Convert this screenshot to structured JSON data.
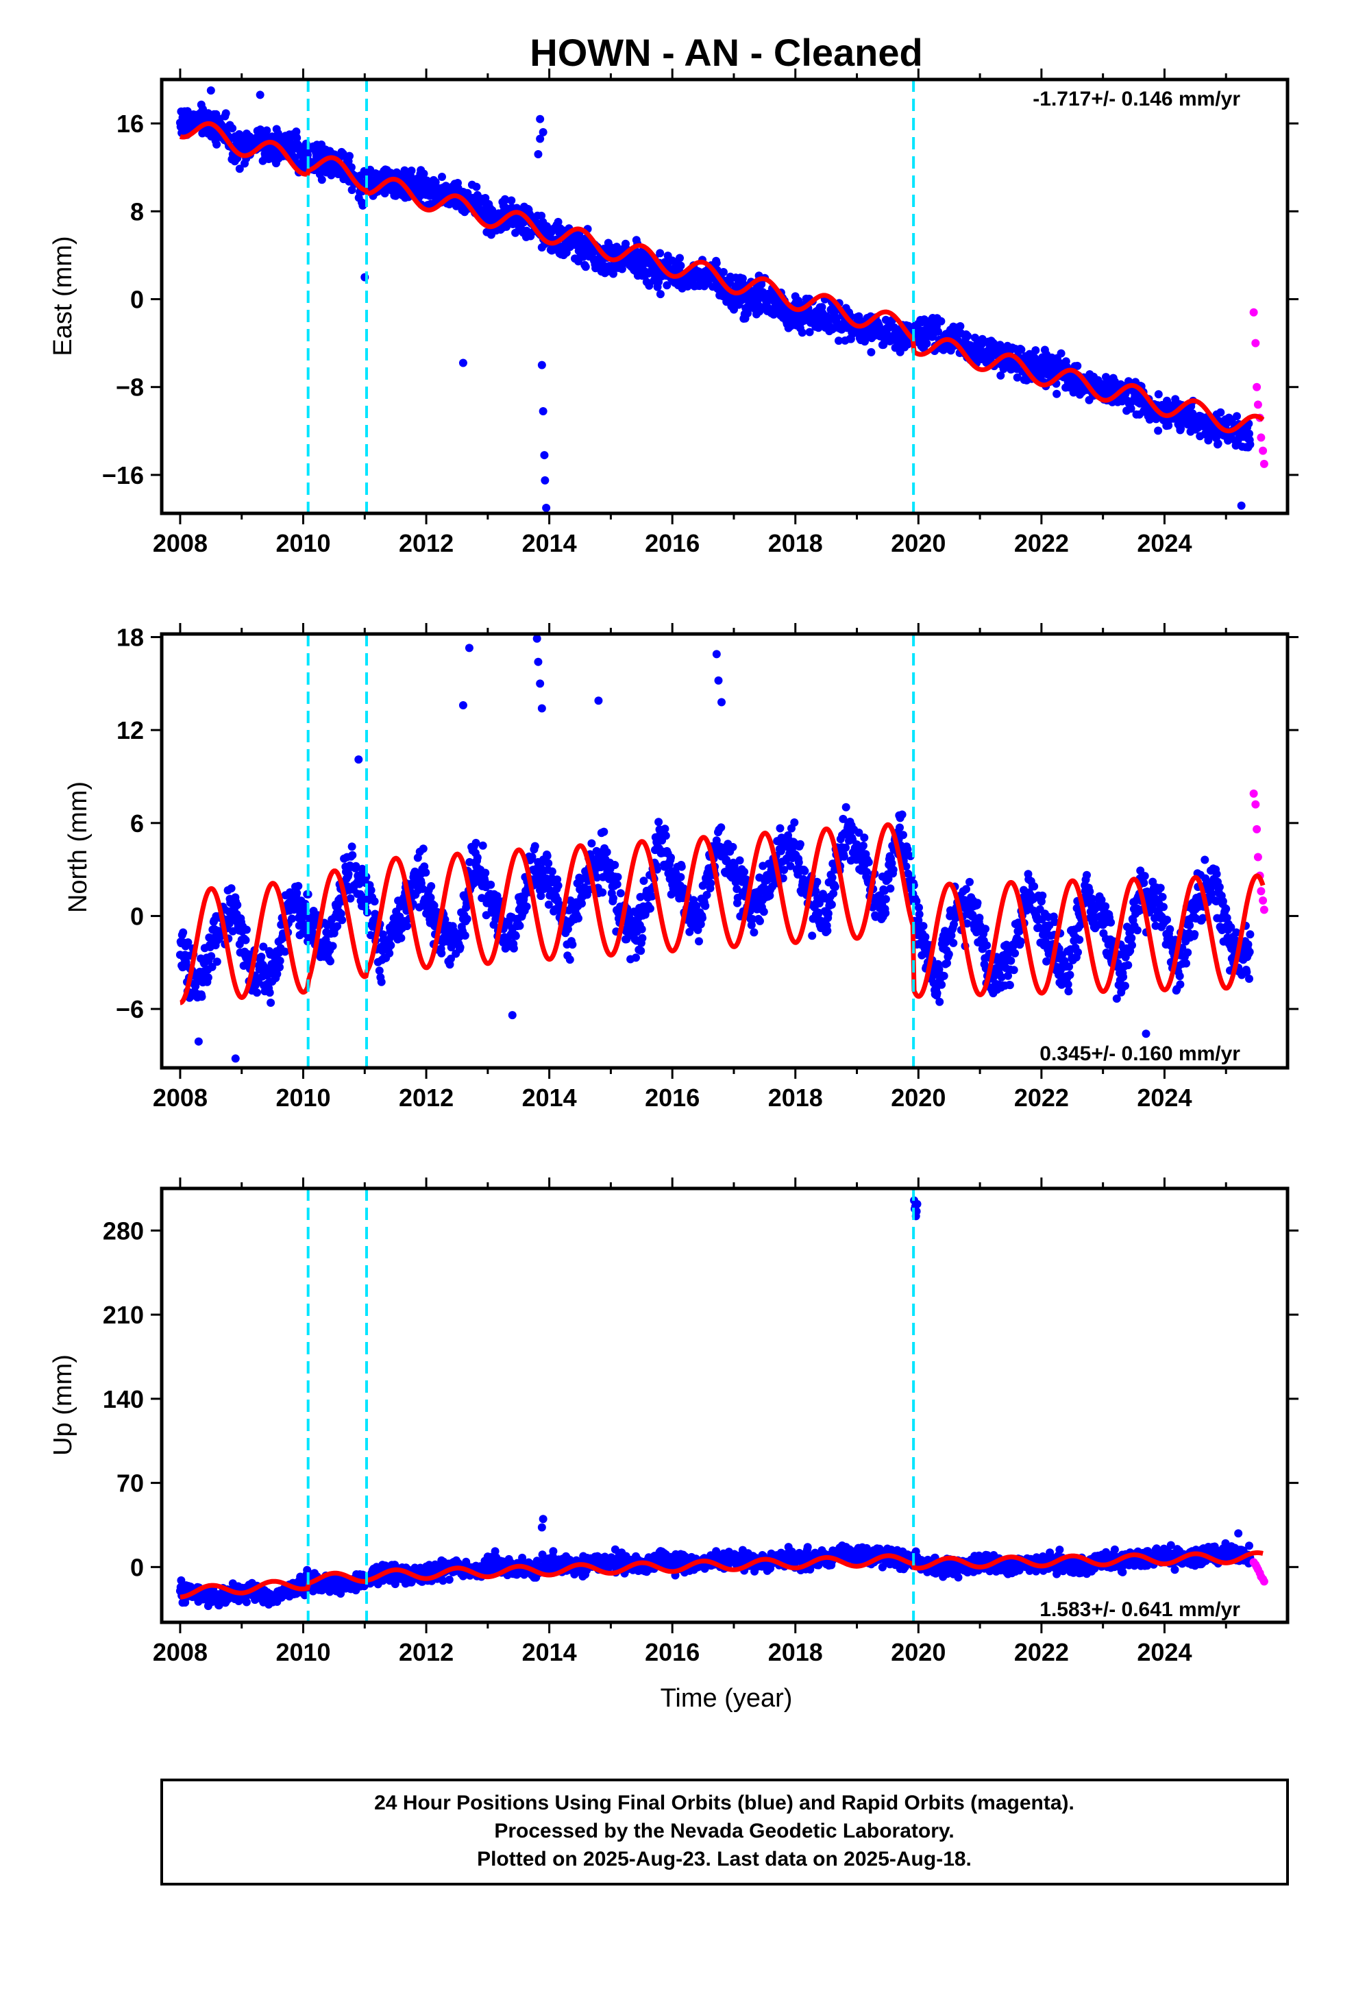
{
  "chart_data": {
    "title": "HOWN  - AN - Cleaned",
    "colors": {
      "final": "#0000ff",
      "rapid": "#ff00ff",
      "model": "#ff0000",
      "breaks": "#00e5ff"
    },
    "x_range": [
      2007.7,
      2026.0
    ],
    "x_ticks": [
      2008,
      2010,
      2012,
      2014,
      2016,
      2018,
      2020,
      2022,
      2024
    ],
    "xlabel": "Time (year)",
    "breaks": [
      2010.08,
      2011.03,
      2019.92
    ],
    "panels": [
      {
        "type": "scatter",
        "name": "east",
        "ylabel": "East (mm)",
        "ylim": [
          -19.5,
          20
        ],
        "y_ticks": [
          -16,
          -8,
          0,
          8,
          16
        ],
        "y_tick_labels": [
          "−16",
          "−8",
          "0",
          "8",
          "16"
        ],
        "rate_text": "-1.717+/- 0.146 mm/yr",
        "rate_position": "top-right",
        "final_series": {
          "name": "Final Orbits",
          "x": [
            2008.0,
            2008.3,
            2008.6,
            2008.9,
            2009.2,
            2009.5,
            2009.8,
            2010.1,
            2010.4,
            2010.7,
            2011.0,
            2011.3,
            2011.6,
            2011.9,
            2012.2,
            2012.5,
            2012.8,
            2013.1,
            2013.4,
            2013.7,
            2014.0,
            2014.3,
            2014.6,
            2014.9,
            2015.2,
            2015.5,
            2015.8,
            2016.1,
            2016.4,
            2016.7,
            2017.0,
            2017.3,
            2017.6,
            2017.9,
            2018.2,
            2018.5,
            2018.8,
            2019.1,
            2019.4,
            2019.7,
            2020.0,
            2020.3,
            2020.6,
            2020.9,
            2021.2,
            2021.5,
            2021.8,
            2022.1,
            2022.4,
            2022.7,
            2023.0,
            2023.3,
            2023.6,
            2023.9,
            2024.2,
            2024.5,
            2024.8,
            2025.1,
            2025.4
          ],
          "y": [
            16.0,
            16.2,
            15.6,
            13.5,
            14.1,
            13.8,
            14.0,
            12.6,
            12.5,
            11.8,
            10.4,
            10.9,
            10.7,
            10.0,
            9.6,
            9.2,
            8.9,
            7.2,
            7.6,
            7.1,
            5.5,
            5.2,
            4.8,
            3.5,
            3.9,
            3.4,
            2.4,
            2.2,
            2.0,
            1.9,
            0.2,
            0.4,
            0.1,
            -1.4,
            -1.0,
            -1.5,
            -2.2,
            -2.6,
            -3.2,
            -3.4,
            -3.0,
            -3.2,
            -3.8,
            -4.6,
            -4.8,
            -5.3,
            -6.3,
            -6.2,
            -6.8,
            -7.9,
            -8.4,
            -8.6,
            -8.8,
            -10.2,
            -10.4,
            -10.8,
            -11.8,
            -11.9,
            -12.1
          ],
          "spread": 1.4
        },
        "rapid_series": {
          "name": "Rapid Orbits",
          "x": [
            2025.45,
            2025.48,
            2025.5,
            2025.52,
            2025.55,
            2025.57,
            2025.6,
            2025.62
          ],
          "y": [
            -1.2,
            -4.0,
            -8.0,
            -9.6,
            -10.8,
            -12.6,
            -13.8,
            -15.0
          ]
        },
        "model": {
          "mean": [
            [
              2008.0,
              15.8
            ],
            [
              2010.07,
              12.3
            ],
            [
              2010.09,
              12.6
            ],
            [
              2011.02,
              10.9
            ],
            [
              2011.04,
              10.6
            ],
            [
              2019.91,
              -2.8
            ],
            [
              2019.93,
              -3.9
            ],
            [
              2025.6,
              -11.8
            ]
          ],
          "amplitude": 1.0
        },
        "outliers": [
          [
            2013.85,
            16.4
          ],
          [
            2013.9,
            15.2
          ],
          [
            2013.85,
            14.6
          ],
          [
            2013.82,
            13.2
          ],
          [
            2013.88,
            -6.0
          ],
          [
            2013.9,
            -10.2
          ],
          [
            2013.92,
            -14.2
          ],
          [
            2013.93,
            -16.5
          ],
          [
            2013.95,
            -19.0
          ],
          [
            2012.6,
            -5.8
          ],
          [
            2025.25,
            -18.8
          ],
          [
            2011.0,
            2.0
          ],
          [
            2009.3,
            18.6
          ],
          [
            2008.5,
            19.0
          ]
        ]
      },
      {
        "type": "scatter",
        "name": "north",
        "ylabel": "North (mm)",
        "ylim": [
          -9.8,
          18.2
        ],
        "y_ticks": [
          -6,
          0,
          6,
          12,
          18
        ],
        "y_tick_labels": [
          "−6",
          "0",
          "6",
          "12",
          "18"
        ],
        "rate_text": "0.345+/- 0.160 mm/yr",
        "rate_position": "bottom-right",
        "final_series": {
          "name": "Final Orbits",
          "x": [
            2008.0,
            2008.3,
            2008.6,
            2008.9,
            2009.2,
            2009.5,
            2009.8,
            2010.1,
            2010.4,
            2010.7,
            2011.0,
            2011.3,
            2011.6,
            2011.9,
            2012.2,
            2012.5,
            2012.8,
            2013.1,
            2013.4,
            2013.7,
            2014.0,
            2014.3,
            2014.6,
            2014.9,
            2015.2,
            2015.5,
            2015.8,
            2016.1,
            2016.4,
            2016.7,
            2017.0,
            2017.3,
            2017.6,
            2017.9,
            2018.2,
            2018.5,
            2018.8,
            2019.1,
            2019.4,
            2019.7,
            2020.0,
            2020.3,
            2020.6,
            2020.9,
            2021.2,
            2021.5,
            2021.8,
            2022.1,
            2022.4,
            2022.7,
            2023.0,
            2023.3,
            2023.6,
            2023.9,
            2024.2,
            2024.5,
            2024.8,
            2025.1,
            2025.4
          ],
          "y": [
            -2.0,
            -4.6,
            -1.0,
            0.2,
            -3.8,
            -4.0,
            1.0,
            -0.5,
            -2.2,
            2.6,
            2.0,
            -2.5,
            0.4,
            2.6,
            -0.6,
            -2.1,
            3.8,
            0.6,
            -1.6,
            3.2,
            2.4,
            -1.2,
            2.2,
            3.8,
            -0.4,
            -0.8,
            4.6,
            2.0,
            -0.6,
            4.4,
            3.0,
            0.2,
            2.4,
            4.8,
            1.8,
            -0.2,
            5.2,
            3.6,
            0.4,
            5.8,
            -1.2,
            -4.4,
            0.6,
            0.4,
            -4.0,
            -3.0,
            1.8,
            -1.4,
            -4.0,
            1.6,
            -0.4,
            -3.8,
            1.2,
            0.8,
            -3.2,
            0.6,
            2.0,
            -2.0,
            -2.6
          ],
          "spread": 1.6
        },
        "rapid_series": {
          "name": "Rapid Orbits",
          "x": [
            2025.45,
            2025.48,
            2025.5,
            2025.52,
            2025.55,
            2025.57,
            2025.6,
            2025.62
          ],
          "y": [
            7.9,
            7.2,
            5.6,
            3.8,
            2.6,
            1.6,
            1.0,
            0.4
          ]
        },
        "model": {
          "mean": [
            [
              2008.0,
              -2.0
            ],
            [
              2010.07,
              -1.3
            ],
            [
              2010.09,
              -1.0
            ],
            [
              2011.02,
              -0.3
            ],
            [
              2011.04,
              0.0
            ],
            [
              2019.91,
              2.4
            ],
            [
              2019.93,
              -1.6
            ],
            [
              2025.6,
              -1.0
            ]
          ],
          "amplitude": 3.6
        },
        "outliers": [
          [
            2012.7,
            17.3
          ],
          [
            2013.8,
            17.9
          ],
          [
            2013.82,
            16.4
          ],
          [
            2013.85,
            15.0
          ],
          [
            2013.88,
            13.4
          ],
          [
            2016.72,
            16.9
          ],
          [
            2016.75,
            15.2
          ],
          [
            2016.8,
            13.8
          ],
          [
            2014.8,
            13.9
          ],
          [
            2012.6,
            13.6
          ],
          [
            2008.9,
            -9.2
          ],
          [
            2008.3,
            -8.1
          ],
          [
            2023.7,
            -7.6
          ],
          [
            2013.4,
            -6.4
          ],
          [
            2010.9,
            10.1
          ]
        ]
      },
      {
        "type": "scatter",
        "name": "up",
        "ylabel": "Up (mm)",
        "ylim": [
          -46,
          315
        ],
        "y_ticks": [
          0,
          70,
          140,
          210,
          280
        ],
        "y_tick_labels": [
          "0",
          "70",
          "140",
          "210",
          "280"
        ],
        "rate_text": "1.583+/- 0.641 mm/yr",
        "rate_position": "bottom-right",
        "final_series": {
          "name": "Final Orbits",
          "x": [
            2008.0,
            2008.3,
            2008.6,
            2008.9,
            2009.2,
            2009.5,
            2009.8,
            2010.1,
            2010.4,
            2010.7,
            2011.0,
            2011.3,
            2011.6,
            2011.9,
            2012.2,
            2012.5,
            2012.8,
            2013.1,
            2013.4,
            2013.7,
            2014.0,
            2014.3,
            2014.6,
            2014.9,
            2015.2,
            2015.5,
            2015.8,
            2016.1,
            2016.4,
            2016.7,
            2017.0,
            2017.3,
            2017.6,
            2017.9,
            2018.2,
            2018.5,
            2018.8,
            2019.1,
            2019.4,
            2019.7,
            2020.0,
            2020.3,
            2020.6,
            2020.9,
            2021.2,
            2021.5,
            2021.8,
            2022.1,
            2022.4,
            2022.7,
            2023.0,
            2023.3,
            2023.6,
            2023.9,
            2024.2,
            2024.5,
            2024.8,
            2025.1,
            2025.4
          ],
          "y": [
            -20,
            -22,
            -26,
            -22,
            -20,
            -27,
            -18,
            -12,
            -14,
            -16,
            -10,
            -4,
            -6,
            -8,
            -2,
            0,
            -4,
            2,
            0,
            -4,
            4,
            0,
            2,
            4,
            6,
            0,
            6,
            4,
            2,
            4,
            8,
            4,
            6,
            8,
            6,
            8,
            10,
            10,
            8,
            8,
            4,
            0,
            -2,
            2,
            4,
            0,
            2,
            4,
            2,
            0,
            6,
            4,
            6,
            10,
            8,
            6,
            12,
            10,
            8
          ],
          "spread": 7
        },
        "rapid_series": {
          "name": "Rapid Orbits",
          "x": [
            2025.45,
            2025.48,
            2025.5,
            2025.52,
            2025.55,
            2025.57,
            2025.6,
            2025.62
          ],
          "y": [
            4,
            2,
            0,
            -2,
            -5,
            -8,
            -10,
            -12
          ]
        },
        "model": {
          "mean": [
            [
              2008.0,
              -21
            ],
            [
              2010.07,
              -14
            ],
            [
              2010.09,
              -10
            ],
            [
              2011.02,
              -8
            ],
            [
              2011.04,
              -7
            ],
            [
              2019.91,
              6
            ],
            [
              2019.93,
              3
            ],
            [
              2025.6,
              8
            ]
          ],
          "amplitude": 4
        },
        "outliers": [
          [
            2013.9,
            40
          ],
          [
            2013.88,
            33
          ],
          [
            2019.93,
            305
          ],
          [
            2019.95,
            300
          ],
          [
            2019.97,
            296
          ],
          [
            2019.96,
            292
          ],
          [
            2019.94,
            298
          ],
          [
            2019.98,
            302
          ],
          [
            2025.2,
            28
          ]
        ]
      }
    ],
    "footer_lines": [
      "24 Hour Positions Using Final Orbits (blue) and Rapid Orbits (magenta).",
      "Processed by the Nevada Geodetic Laboratory.",
      "Plotted on 2025-Aug-23. Last data on 2025-Aug-18."
    ]
  }
}
